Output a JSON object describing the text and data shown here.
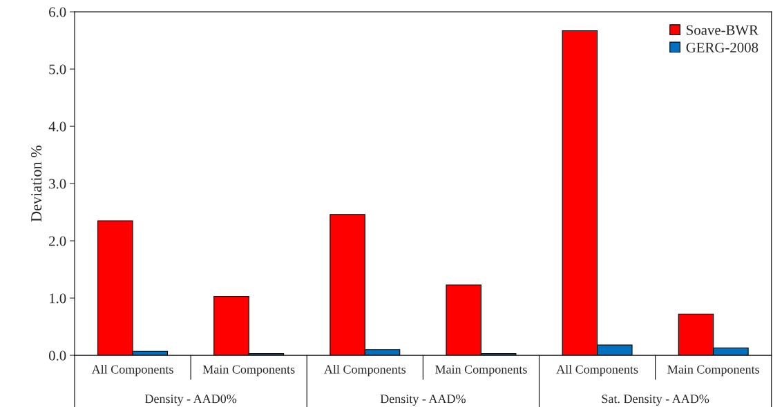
{
  "chart_data": {
    "type": "bar",
    "ylabel": "Deviation %",
    "categories": [
      "All Components",
      "Main Components",
      "All Components",
      "Main Components",
      "All Components",
      "Main Components"
    ],
    "series": [
      {
        "name": "Soave-BWR",
        "color": "#ff0000",
        "values": [
          2.35,
          1.03,
          2.46,
          1.23,
          5.67,
          0.72
        ]
      },
      {
        "name": "GERG-2008",
        "color": "#0070c0",
        "values": [
          0.07,
          0.03,
          0.1,
          0.03,
          0.18,
          0.13
        ]
      }
    ],
    "annotations": [
      "Density - AAD0%",
      "Density - AAD%",
      "Sat. Density - AAD%"
    ],
    "ylim": [
      0,
      6
    ],
    "yticks": [
      {
        "value": 0,
        "label": "0.0"
      },
      {
        "value": 1,
        "label": "1.0"
      },
      {
        "value": 2,
        "label": "2.0"
      },
      {
        "value": 3,
        "label": "3.0"
      },
      {
        "value": 4,
        "label": "4.0"
      },
      {
        "value": 5,
        "label": "5.0"
      },
      {
        "value": 6,
        "label": "6.0"
      }
    ],
    "grid": false,
    "legend": "top right"
  }
}
